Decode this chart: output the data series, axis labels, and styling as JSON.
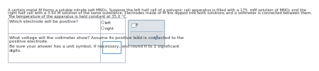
{
  "bg_color": "#ffffff",
  "header_line1": "A certain metal M forms a soluble nitrate salt MNO₃. Suppose the left half cell of a galvanic cell apparatus is filled with a 175. mM solution of MNO₃ and the",
  "header_line2": "right half cell with a 3.50 M solution of the same substance. Electrodes made of M are dipped into both solutions and a voltmeter is connected between them.",
  "header_line3": "The temperature of the apparatus is held constant at 35.0 °C.",
  "q1": "Which electrode will be positive?",
  "opt_left": "left",
  "opt_right": "right",
  "q2_l1": "What voltage will the voltmeter show? Assume its positive lead is connected to the",
  "q2_l2": "positive electrode.",
  "q2_l3": "Be sure your answer has a unit symbol, if necessary, and round it to 2 significant",
  "q2_l4": "digits.",
  "border_color": "#b0b8c0",
  "text_color": "#333333",
  "light_gray": "#d8dde2",
  "panel_bg": "#dde3e8",
  "panel_border": "#9ab0c0",
  "white": "#ffffff",
  "radio_edge": "#999999",
  "input_border": "#6aa0d0",
  "x_color": "#8090a0",
  "undo_color": "#5588bb",
  "fs": 4.2,
  "fs_header": 3.9
}
